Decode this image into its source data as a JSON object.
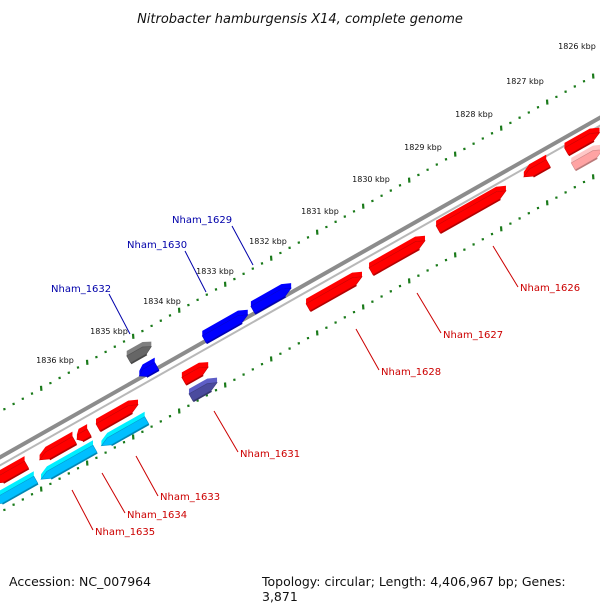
{
  "title": "Nitrobacter hamburgensis X14, complete genome",
  "accession_label": "Accession: NC_007964",
  "summary_label": "Topology: circular; Length: 4,406,967 bp; Genes: 3,871",
  "colors": {
    "forward_gene": "#ff0000",
    "reverse_gene_blue": "#0000ff",
    "cyan_gene": "#00bfff",
    "gray_gene": "#666666",
    "slate_gene": "#4b4b9e",
    "backbone": "#8c8c8c",
    "tick": "#1a7a1a",
    "label_forward": "#cc0000",
    "label_reverse": "#0000aa"
  },
  "kbp_ticks": [
    "1826 kbp",
    "1827 kbp",
    "1828 kbp",
    "1829 kbp",
    "1830 kbp",
    "1831 kbp",
    "1832 kbp",
    "1833 kbp",
    "1834 kbp",
    "1835 kbp",
    "1836 kbp"
  ],
  "genes": [
    {
      "name": "Nham_1626",
      "strand": "forward"
    },
    {
      "name": "Nham_1627",
      "strand": "forward"
    },
    {
      "name": "Nham_1628",
      "strand": "forward"
    },
    {
      "name": "Nham_1629",
      "strand": "reverse"
    },
    {
      "name": "Nham_1630",
      "strand": "reverse"
    },
    {
      "name": "Nham_1631",
      "strand": "forward"
    },
    {
      "name": "Nham_1632",
      "strand": "reverse"
    },
    {
      "name": "Nham_1633",
      "strand": "forward"
    },
    {
      "name": "Nham_1634",
      "strand": "forward"
    },
    {
      "name": "Nham_1635",
      "strand": "forward"
    }
  ]
}
